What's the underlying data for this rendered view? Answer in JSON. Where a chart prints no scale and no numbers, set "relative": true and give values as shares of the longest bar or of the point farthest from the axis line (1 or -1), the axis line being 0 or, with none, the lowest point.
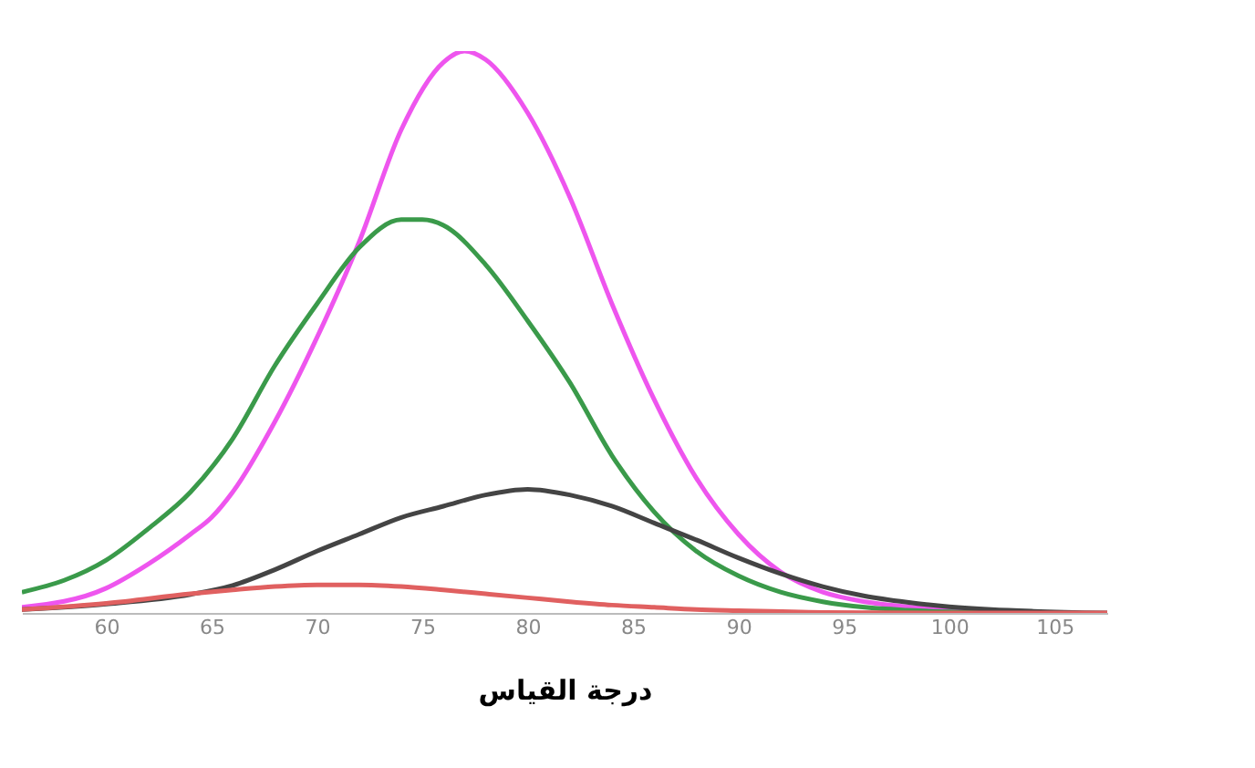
{
  "chart_data": {
    "type": "line",
    "xlabel": "درجة القياس",
    "relative": true,
    "xlim": [
      56,
      107.5
    ],
    "xticks": [
      60,
      65,
      70,
      75,
      80,
      85,
      90,
      95,
      100,
      105
    ],
    "series": [
      {
        "color": "#ee55ee",
        "x": [
          56,
          60,
          62,
          64,
          65,
          66,
          68,
          70,
          72,
          74,
          76,
          77,
          78,
          80,
          82,
          84,
          86,
          88,
          90,
          92,
          94,
          96,
          98,
          100,
          102
        ],
        "values": [
          0.01,
          0.044,
          0.087,
          0.14,
          0.17,
          0.215,
          0.34,
          0.49,
          0.66,
          0.86,
          0.98,
          1.0,
          0.985,
          0.89,
          0.74,
          0.55,
          0.38,
          0.24,
          0.14,
          0.073,
          0.037,
          0.02,
          0.011,
          0.006,
          0.003
        ]
      },
      {
        "color": "#3a9a4a",
        "x": [
          56,
          58,
          60,
          62,
          64,
          66,
          68,
          70,
          72,
          74,
          75,
          76,
          78,
          80,
          82,
          84,
          86,
          88,
          90,
          92,
          94,
          96,
          98,
          100,
          102
        ],
        "values": [
          0.037,
          0.058,
          0.094,
          0.15,
          0.215,
          0.31,
          0.44,
          0.55,
          0.65,
          0.7,
          0.7,
          0.69,
          0.62,
          0.52,
          0.41,
          0.28,
          0.18,
          0.11,
          0.066,
          0.037,
          0.02,
          0.01,
          0.005,
          0.002,
          0.001
        ]
      },
      {
        "color": "#444444",
        "x": [
          56,
          60,
          64,
          66,
          68,
          70,
          72,
          74,
          76,
          78,
          80,
          82,
          84,
          86,
          88,
          90,
          92,
          94,
          96,
          98,
          100,
          102,
          104,
          107.5
        ],
        "values": [
          0.006,
          0.016,
          0.033,
          0.049,
          0.077,
          0.11,
          0.14,
          0.17,
          0.19,
          0.21,
          0.22,
          0.21,
          0.19,
          0.16,
          0.13,
          0.098,
          0.07,
          0.047,
          0.03,
          0.019,
          0.011,
          0.006,
          0.003,
          0
        ]
      },
      {
        "color": "#e06060",
        "x": [
          56,
          60,
          64,
          66,
          68,
          70,
          72,
          74,
          76,
          78,
          80,
          82,
          84,
          86,
          88,
          90,
          94,
          100,
          107.5
        ],
        "values": [
          0.006,
          0.017,
          0.034,
          0.041,
          0.047,
          0.05,
          0.05,
          0.047,
          0.041,
          0.034,
          0.027,
          0.02,
          0.014,
          0.01,
          0.006,
          0.004,
          0.001,
          0,
          0
        ]
      }
    ]
  }
}
